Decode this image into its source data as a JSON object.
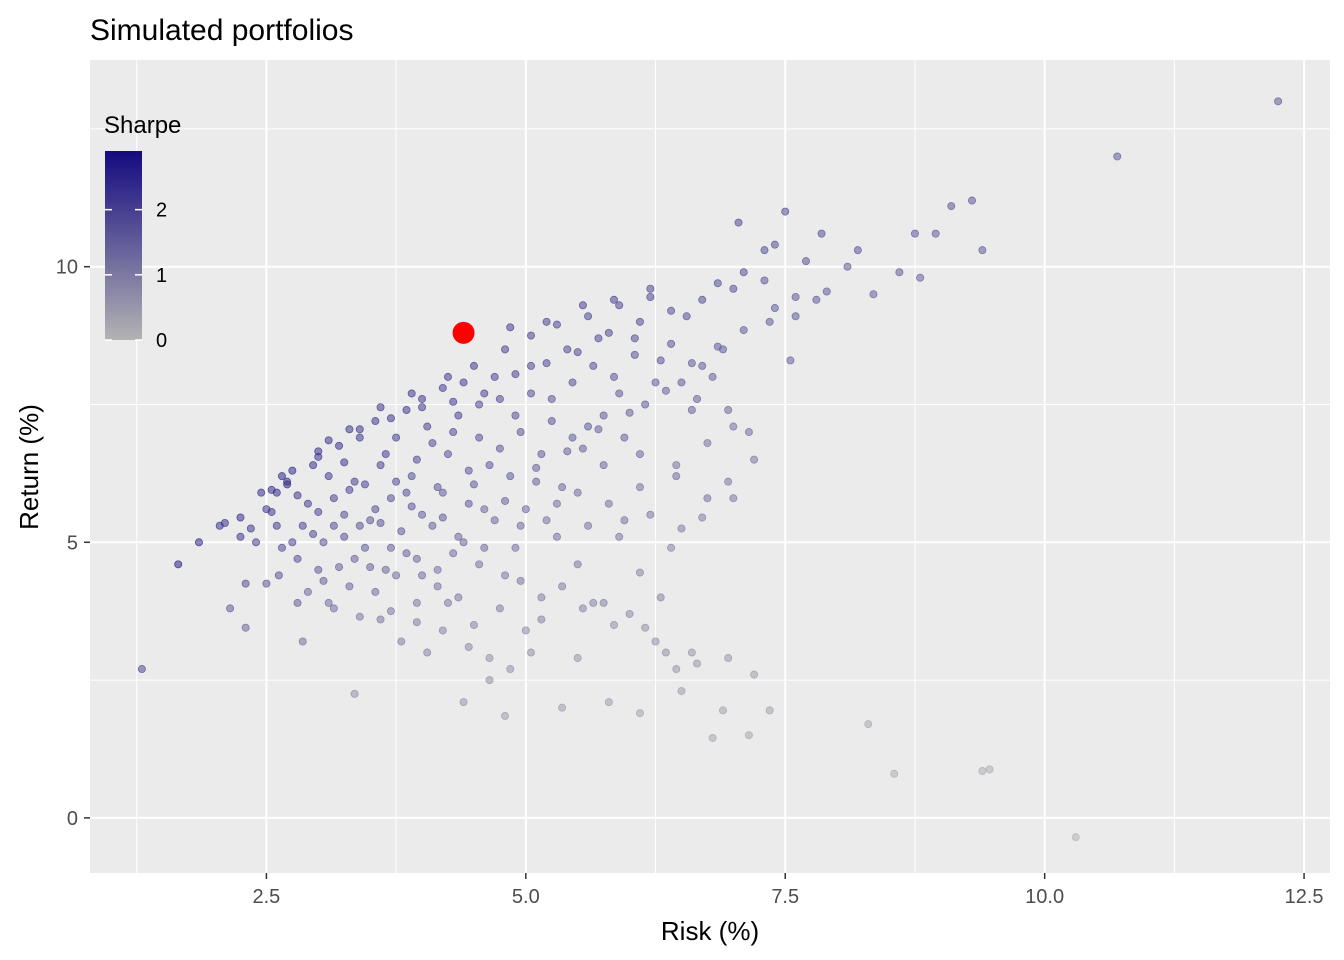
{
  "chart_data": {
    "type": "scatter",
    "title": "Simulated portfolios",
    "xlabel": "Risk (%)",
    "ylabel": "Return (%)",
    "xlim": [
      0.8,
      12.75
    ],
    "ylim": [
      -1.0,
      13.75
    ],
    "x_ticks": [
      2.5,
      5.0,
      7.5,
      10.0,
      12.5
    ],
    "x_tick_labels": [
      "2.5",
      "5.0",
      "7.5",
      "10.0",
      "12.5"
    ],
    "y_ticks": [
      0,
      5,
      10
    ],
    "y_tick_labels": [
      "0",
      "5",
      "10"
    ],
    "grid": true,
    "legend": {
      "title": "Sharpe",
      "placement": "top-left",
      "color_low": "#b3b3b3",
      "color_high": "#140a80",
      "range": [
        0,
        2.9
      ],
      "ticks": [
        0,
        1,
        2
      ],
      "tick_labels": [
        "0",
        "1",
        "2"
      ]
    },
    "highlight": {
      "x": 4.4,
      "y": 8.8,
      "color": "#ff0000"
    },
    "points": [
      [
        1.3,
        2.7,
        1.8
      ],
      [
        1.65,
        4.6,
        2.5
      ],
      [
        1.85,
        5.0,
        2.4
      ],
      [
        2.1,
        5.35,
        2.2
      ],
      [
        2.15,
        3.8,
        1.5
      ],
      [
        2.25,
        5.45,
        2.3
      ],
      [
        2.25,
        5.1,
        2.1
      ],
      [
        2.3,
        4.25,
        1.7
      ],
      [
        2.3,
        3.45,
        1.3
      ],
      [
        2.4,
        5.0,
        1.9
      ],
      [
        2.45,
        5.9,
        2.3
      ],
      [
        2.5,
        5.6,
        2.1
      ],
      [
        2.55,
        5.95,
        2.3
      ],
      [
        2.6,
        5.3,
        2.0
      ],
      [
        2.62,
        4.4,
        1.6
      ],
      [
        2.65,
        6.2,
        2.4
      ],
      [
        2.7,
        6.05,
        2.3
      ],
      [
        2.75,
        5.0,
        1.8
      ],
      [
        2.8,
        4.7,
        1.7
      ],
      [
        2.8,
        3.9,
        1.4
      ],
      [
        2.85,
        3.2,
        1.1
      ],
      [
        2.9,
        5.7,
        2.0
      ],
      [
        2.95,
        6.4,
        2.2
      ],
      [
        3.0,
        6.55,
        2.2
      ],
      [
        3.0,
        4.5,
        1.5
      ],
      [
        3.05,
        5.0,
        1.6
      ],
      [
        3.1,
        6.2,
        2.0
      ],
      [
        3.15,
        3.8,
        1.2
      ],
      [
        3.2,
        6.75,
        2.2
      ],
      [
        3.25,
        5.5,
        1.7
      ],
      [
        3.3,
        4.2,
        1.3
      ],
      [
        3.35,
        2.25,
        0.6
      ],
      [
        3.35,
        6.1,
        1.9
      ],
      [
        3.4,
        6.9,
        2.1
      ],
      [
        3.45,
        4.9,
        1.5
      ],
      [
        3.5,
        5.4,
        1.6
      ],
      [
        3.55,
        7.2,
        2.1
      ],
      [
        3.6,
        6.4,
        1.9
      ],
      [
        3.6,
        3.6,
        1.0
      ],
      [
        3.65,
        4.5,
        1.3
      ],
      [
        3.7,
        5.8,
        1.7
      ],
      [
        3.75,
        6.9,
        2.0
      ],
      [
        3.8,
        5.2,
        1.5
      ],
      [
        3.8,
        3.2,
        0.9
      ],
      [
        3.85,
        7.4,
        2.1
      ],
      [
        3.9,
        6.2,
        1.7
      ],
      [
        3.95,
        4.7,
        1.3
      ],
      [
        4.0,
        7.6,
        2.0
      ],
      [
        4.0,
        5.5,
        1.5
      ],
      [
        4.05,
        3.0,
        0.8
      ],
      [
        4.1,
        6.8,
        1.8
      ],
      [
        4.15,
        4.2,
        1.1
      ],
      [
        4.2,
        7.8,
        2.0
      ],
      [
        4.2,
        5.9,
        1.5
      ],
      [
        4.25,
        3.9,
        1.0
      ],
      [
        4.3,
        7.0,
        1.8
      ],
      [
        4.35,
        5.1,
        1.3
      ],
      [
        4.4,
        2.1,
        0.5
      ],
      [
        4.4,
        7.9,
        2.0
      ],
      [
        4.45,
        6.3,
        1.6
      ],
      [
        4.5,
        3.5,
        0.8
      ],
      [
        4.55,
        7.5,
        1.8
      ],
      [
        4.6,
        5.6,
        1.3
      ],
      [
        4.65,
        2.5,
        0.6
      ],
      [
        4.7,
        8.0,
        1.9
      ],
      [
        4.75,
        6.7,
        1.6
      ],
      [
        4.8,
        4.4,
        1.0
      ],
      [
        4.8,
        1.85,
        0.4
      ],
      [
        4.85,
        8.9,
        2.0
      ],
      [
        4.9,
        7.3,
        1.7
      ],
      [
        4.95,
        5.3,
        1.2
      ],
      [
        5.0,
        3.4,
        0.7
      ],
      [
        5.05,
        8.2,
        1.8
      ],
      [
        5.1,
        6.1,
        1.4
      ],
      [
        5.15,
        4.0,
        0.9
      ],
      [
        5.2,
        9.0,
        1.9
      ],
      [
        5.25,
        7.6,
        1.6
      ],
      [
        5.3,
        5.7,
        1.2
      ],
      [
        5.35,
        2.0,
        0.4
      ],
      [
        5.4,
        8.5,
        1.8
      ],
      [
        5.45,
        6.9,
        1.5
      ],
      [
        5.5,
        4.6,
        1.0
      ],
      [
        5.55,
        9.3,
        1.9
      ],
      [
        5.6,
        7.1,
        1.5
      ],
      [
        5.65,
        3.9,
        0.8
      ],
      [
        5.7,
        8.7,
        1.8
      ],
      [
        5.75,
        6.4,
        1.3
      ],
      [
        5.8,
        2.1,
        0.4
      ],
      [
        5.85,
        9.4,
        1.9
      ],
      [
        5.9,
        7.7,
        1.5
      ],
      [
        5.95,
        5.4,
        1.1
      ],
      [
        6.0,
        3.7,
        0.7
      ],
      [
        6.05,
        8.4,
        1.6
      ],
      [
        6.1,
        6.6,
        1.3
      ],
      [
        6.1,
        1.9,
        0.3
      ],
      [
        6.2,
        9.6,
        1.8
      ],
      [
        6.25,
        7.9,
        1.5
      ],
      [
        6.3,
        4.0,
        0.8
      ],
      [
        6.35,
        3.0,
        0.6
      ],
      [
        6.4,
        8.6,
        1.6
      ],
      [
        6.45,
        6.2,
        1.2
      ],
      [
        6.5,
        2.3,
        0.4
      ],
      [
        6.55,
        9.1,
        1.7
      ],
      [
        6.6,
        7.4,
        1.4
      ],
      [
        6.65,
        2.8,
        0.5
      ],
      [
        6.7,
        8.2,
        1.5
      ],
      [
        6.75,
        5.8,
        1.1
      ],
      [
        6.8,
        1.45,
        0.2
      ],
      [
        6.85,
        9.7,
        1.7
      ],
      [
        6.9,
        8.5,
        1.5
      ],
      [
        6.95,
        2.9,
        0.5
      ],
      [
        7.0,
        5.8,
        1.0
      ],
      [
        7.05,
        10.8,
        1.8
      ],
      [
        7.1,
        9.9,
        1.7
      ],
      [
        7.15,
        7.0,
        1.2
      ],
      [
        7.15,
        1.5,
        0.2
      ],
      [
        7.2,
        2.6,
        0.4
      ],
      [
        7.3,
        10.3,
        1.7
      ],
      [
        7.35,
        9.0,
        1.5
      ],
      [
        7.4,
        10.4,
        1.7
      ],
      [
        7.5,
        11.0,
        1.8
      ],
      [
        7.55,
        8.3,
        1.4
      ],
      [
        7.6,
        9.1,
        1.5
      ],
      [
        7.7,
        10.1,
        1.6
      ],
      [
        7.8,
        9.4,
        1.5
      ],
      [
        7.85,
        10.6,
        1.7
      ],
      [
        8.1,
        10.0,
        1.5
      ],
      [
        8.2,
        10.3,
        1.6
      ],
      [
        8.3,
        1.7,
        0.2
      ],
      [
        8.35,
        9.5,
        1.4
      ],
      [
        8.55,
        0.8,
        0.1
      ],
      [
        8.6,
        9.9,
        1.5
      ],
      [
        8.75,
        10.6,
        1.6
      ],
      [
        8.8,
        9.8,
        1.4
      ],
      [
        8.95,
        10.6,
        1.5
      ],
      [
        9.1,
        11.1,
        1.6
      ],
      [
        9.3,
        11.2,
        1.6
      ],
      [
        9.4,
        10.3,
        1.5
      ],
      [
        9.4,
        0.85,
        0.1
      ],
      [
        9.47,
        0.88,
        0.1
      ],
      [
        10.3,
        -0.35,
        0.0
      ],
      [
        10.7,
        12.0,
        1.5
      ],
      [
        12.25,
        13.0,
        1.5
      ],
      [
        2.7,
        6.1,
        2.3
      ],
      [
        2.85,
        5.3,
        1.9
      ],
      [
        3.15,
        5.8,
        1.9
      ],
      [
        3.25,
        6.45,
        2.1
      ],
      [
        3.45,
        6.05,
        1.9
      ],
      [
        3.55,
        5.6,
        1.7
      ],
      [
        3.65,
        6.6,
        2.0
      ],
      [
        3.75,
        6.1,
        1.8
      ],
      [
        3.85,
        5.9,
        1.7
      ],
      [
        3.95,
        6.5,
        1.8
      ],
      [
        4.05,
        7.1,
        1.9
      ],
      [
        4.15,
        6.0,
        1.6
      ],
      [
        4.25,
        6.6,
        1.7
      ],
      [
        4.35,
        7.3,
        1.9
      ],
      [
        4.45,
        5.7,
        1.5
      ],
      [
        4.55,
        6.9,
        1.7
      ],
      [
        4.65,
        6.4,
        1.6
      ],
      [
        4.75,
        7.6,
        1.8
      ],
      [
        4.85,
        6.2,
        1.5
      ],
      [
        4.95,
        7.0,
        1.6
      ],
      [
        5.05,
        7.7,
        1.7
      ],
      [
        5.15,
        6.6,
        1.5
      ],
      [
        5.25,
        7.2,
        1.6
      ],
      [
        5.35,
        6.0,
        1.3
      ],
      [
        5.45,
        7.9,
        1.7
      ],
      [
        5.55,
        6.7,
        1.4
      ],
      [
        5.65,
        8.2,
        1.7
      ],
      [
        5.75,
        7.3,
        1.5
      ],
      [
        5.85,
        8.0,
        1.6
      ],
      [
        5.95,
        6.9,
        1.4
      ],
      [
        6.05,
        8.7,
        1.7
      ],
      [
        6.15,
        7.5,
        1.5
      ],
      [
        6.3,
        8.3,
        1.6
      ],
      [
        6.5,
        7.9,
        1.5
      ],
      [
        6.65,
        7.6,
        1.4
      ],
      [
        6.8,
        8.0,
        1.4
      ],
      [
        6.95,
        7.4,
        1.3
      ],
      [
        3.05,
        4.3,
        1.4
      ],
      [
        3.35,
        4.7,
        1.4
      ],
      [
        3.55,
        4.1,
        1.2
      ],
      [
        3.75,
        4.4,
        1.2
      ],
      [
        3.95,
        3.9,
        1.0
      ],
      [
        4.15,
        4.5,
        1.1
      ],
      [
        4.35,
        4.0,
        1.0
      ],
      [
        4.55,
        4.6,
        1.1
      ],
      [
        4.75,
        3.8,
        0.9
      ],
      [
        4.95,
        4.3,
        1.0
      ],
      [
        5.15,
        3.6,
        0.8
      ],
      [
        5.35,
        4.2,
        0.9
      ],
      [
        5.55,
        3.8,
        0.8
      ],
      [
        5.75,
        3.9,
        0.8
      ],
      [
        6.25,
        3.2,
        0.6
      ],
      [
        6.45,
        2.7,
        0.5
      ],
      [
        6.9,
        1.95,
        0.3
      ],
      [
        7.35,
        1.95,
        0.3
      ],
      [
        3.1,
        6.85,
        2.2
      ],
      [
        3.4,
        7.05,
        2.1
      ],
      [
        3.7,
        7.25,
        2.1
      ],
      [
        4.0,
        7.45,
        2.0
      ],
      [
        4.3,
        7.55,
        2.0
      ],
      [
        4.6,
        7.7,
        1.9
      ],
      [
        4.9,
        8.05,
        1.9
      ],
      [
        5.2,
        8.25,
        1.8
      ],
      [
        5.5,
        8.45,
        1.8
      ],
      [
        5.8,
        8.8,
        1.8
      ],
      [
        6.1,
        9.0,
        1.8
      ],
      [
        6.4,
        9.2,
        1.7
      ],
      [
        6.7,
        9.4,
        1.7
      ],
      [
        7.0,
        9.6,
        1.7
      ],
      [
        7.3,
        9.75,
        1.6
      ],
      [
        2.5,
        4.25,
        1.6
      ],
      [
        2.65,
        4.9,
        1.8
      ],
      [
        2.95,
        5.15,
        1.8
      ],
      [
        3.25,
        5.1,
        1.6
      ],
      [
        3.5,
        4.55,
        1.4
      ],
      [
        3.85,
        4.8,
        1.4
      ],
      [
        4.1,
        5.3,
        1.4
      ],
      [
        4.4,
        5.0,
        1.3
      ],
      [
        4.7,
        5.4,
        1.3
      ],
      [
        5.0,
        5.6,
        1.3
      ],
      [
        5.3,
        5.1,
        1.1
      ],
      [
        5.6,
        5.3,
        1.1
      ],
      [
        5.9,
        5.1,
        1.0
      ],
      [
        6.2,
        5.5,
        1.0
      ],
      [
        6.5,
        5.25,
        0.9
      ],
      [
        2.05,
        5.3,
        2.2
      ],
      [
        2.35,
        5.25,
        2.1
      ],
      [
        2.55,
        5.55,
        2.1
      ],
      [
        2.8,
        5.85,
        2.1
      ],
      [
        3.0,
        5.55,
        1.9
      ],
      [
        3.3,
        5.95,
        1.9
      ],
      [
        3.6,
        5.35,
        1.6
      ],
      [
        3.9,
        5.65,
        1.6
      ],
      [
        4.2,
        5.45,
        1.5
      ],
      [
        4.5,
        6.05,
        1.5
      ],
      [
        4.8,
        5.75,
        1.4
      ],
      [
        5.1,
        6.35,
        1.4
      ],
      [
        5.4,
        6.65,
        1.4
      ],
      [
        5.7,
        7.05,
        1.4
      ],
      [
        6.0,
        7.35,
        1.4
      ],
      [
        6.35,
        7.75,
        1.4
      ],
      [
        6.6,
        8.25,
        1.5
      ],
      [
        6.85,
        8.55,
        1.5
      ],
      [
        7.1,
        8.85,
        1.5
      ],
      [
        7.4,
        9.25,
        1.5
      ],
      [
        7.6,
        9.45,
        1.5
      ],
      [
        7.9,
        9.55,
        1.5
      ],
      [
        4.25,
        8.0,
        2.0
      ],
      [
        4.5,
        8.2,
        2.0
      ],
      [
        4.8,
        8.5,
        1.9
      ],
      [
        5.05,
        8.75,
        1.9
      ],
      [
        5.3,
        8.95,
        1.9
      ],
      [
        5.6,
        9.1,
        1.8
      ],
      [
        5.9,
        9.3,
        1.8
      ],
      [
        6.2,
        9.45,
        1.8
      ],
      [
        3.9,
        7.7,
        2.1
      ],
      [
        3.6,
        7.45,
        2.1
      ],
      [
        3.3,
        7.05,
        2.1
      ],
      [
        3.0,
        6.65,
        2.2
      ],
      [
        2.75,
        6.3,
        2.3
      ],
      [
        2.6,
        5.9,
        2.3
      ],
      [
        4.45,
        3.1,
        0.7
      ],
      [
        4.65,
        2.9,
        0.6
      ],
      [
        4.85,
        2.7,
        0.6
      ],
      [
        5.05,
        3.0,
        0.6
      ],
      [
        4.2,
        3.4,
        0.8
      ],
      [
        3.95,
        3.55,
        0.9
      ],
      [
        3.7,
        3.75,
        1.0
      ],
      [
        3.4,
        3.65,
        1.0
      ],
      [
        3.1,
        3.9,
        1.2
      ],
      [
        2.9,
        4.1,
        1.3
      ],
      [
        3.2,
        4.55,
        1.4
      ],
      [
        5.5,
        2.9,
        0.5
      ],
      [
        5.85,
        3.5,
        0.6
      ],
      [
        6.15,
        3.45,
        0.6
      ],
      [
        6.6,
        3.0,
        0.5
      ],
      [
        6.1,
        4.45,
        0.8
      ],
      [
        6.4,
        4.9,
        0.8
      ],
      [
        6.7,
        5.45,
        0.9
      ],
      [
        6.95,
        6.1,
        1.0
      ],
      [
        7.2,
        6.5,
        1.0
      ],
      [
        7.0,
        7.1,
        1.1
      ],
      [
        6.75,
        6.8,
        1.1
      ],
      [
        6.45,
        6.4,
        1.1
      ],
      [
        6.1,
        6.0,
        1.1
      ],
      [
        5.8,
        5.7,
        1.1
      ],
      [
        5.5,
        5.9,
        1.2
      ],
      [
        5.2,
        5.4,
        1.1
      ],
      [
        4.9,
        4.9,
        1.1
      ],
      [
        4.6,
        4.9,
        1.2
      ],
      [
        4.3,
        4.8,
        1.2
      ],
      [
        4.0,
        4.4,
        1.2
      ],
      [
        3.7,
        4.9,
        1.4
      ],
      [
        3.4,
        5.3,
        1.6
      ],
      [
        3.15,
        5.3,
        1.7
      ]
    ]
  }
}
